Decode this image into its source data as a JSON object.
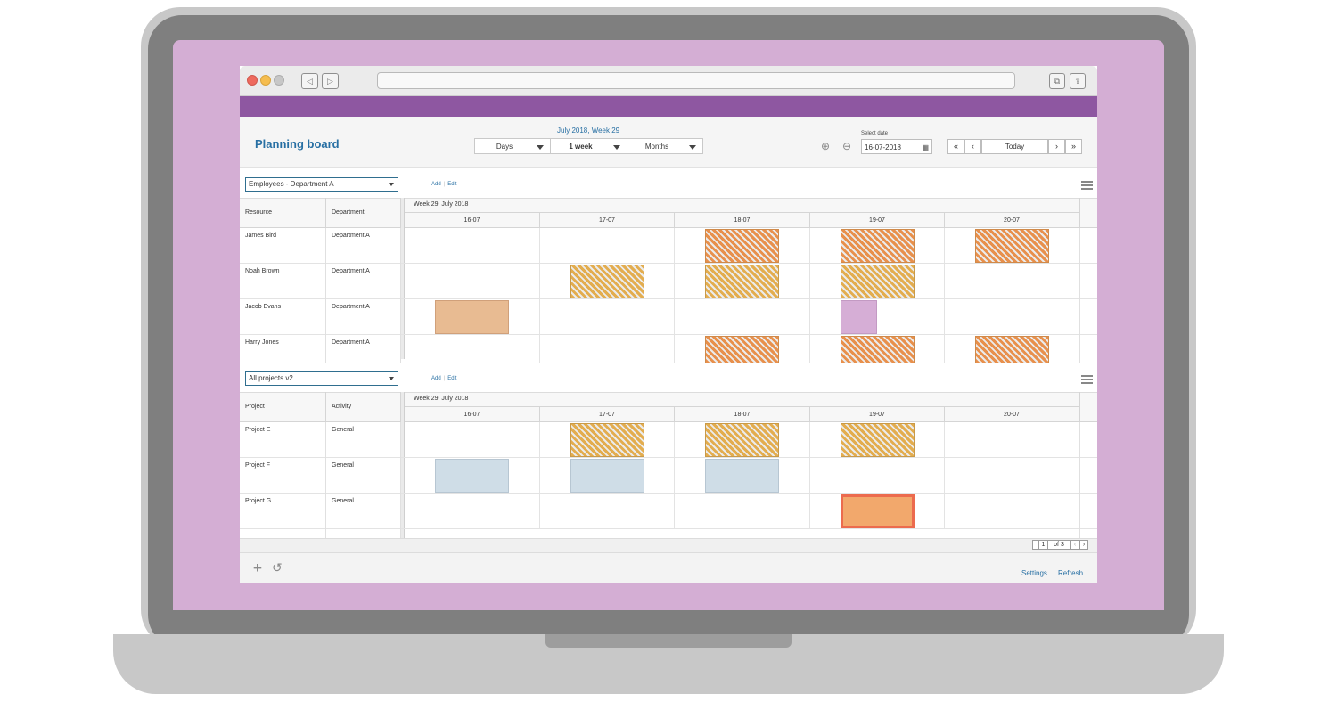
{
  "app": {
    "title": "Planning board",
    "period_label": "July 2018, Week 29",
    "view_selects": [
      {
        "label": "Days",
        "bold": false
      },
      {
        "label": "1 week",
        "bold": true
      },
      {
        "label": "Months",
        "bold": false
      }
    ],
    "select_date_label": "Select date",
    "date_value": "16-07-2018",
    "pager": {
      "first": "«",
      "prev": "‹",
      "today": "Today",
      "next": "›",
      "last": "»"
    }
  },
  "colors": {
    "brand_purple": "#8e57a1",
    "link_blue": "#276fa3",
    "bar_orange": "#e8904c",
    "bar_yellow": "#e3ad4f",
    "bar_peach": "#e8bb92",
    "bar_lilac": "#d6aed6",
    "bar_lightblue": "#cfdde7",
    "bar_salmon": "#f2a86c"
  },
  "sections": [
    {
      "filter_value": "Employees - Department A",
      "add_label": "Add",
      "edit_label": "Edit",
      "columns": [
        "Resource",
        "Department"
      ],
      "week_label": "Week 29, July 2018",
      "days": [
        "16-07",
        "17-07",
        "18-07",
        "19-07",
        "20-07"
      ],
      "rows": [
        {
          "name": "James Bird",
          "group": "Department A",
          "bookings": [
            {
              "day": 2,
              "style": "orange"
            },
            {
              "day": 3,
              "style": "orange"
            },
            {
              "day": 4,
              "style": "orange"
            }
          ]
        },
        {
          "name": "Noah Brown",
          "group": "Department A",
          "bookings": [
            {
              "day": 1,
              "style": "yellow"
            },
            {
              "day": 2,
              "style": "yellow"
            },
            {
              "day": 3,
              "style": "yellow"
            }
          ]
        },
        {
          "name": "Jacob Evans",
          "group": "Department A",
          "bookings": [
            {
              "day": 0,
              "style": "peach"
            },
            {
              "day": 3,
              "style": "lilac",
              "half": true
            }
          ]
        },
        {
          "name": "Harry Jones",
          "group": "Department A",
          "bookings": [
            {
              "day": 2,
              "style": "orange"
            },
            {
              "day": 3,
              "style": "orange"
            },
            {
              "day": 4,
              "style": "orange"
            }
          ]
        }
      ]
    },
    {
      "filter_value": "All projects v2",
      "add_label": "Add",
      "edit_label": "Edit",
      "columns": [
        "Project",
        "Activity"
      ],
      "week_label": "Week 29, July 2018",
      "days": [
        "16-07",
        "17-07",
        "18-07",
        "19-07",
        "20-07"
      ],
      "rows": [
        {
          "name": "Project E",
          "group": "General",
          "bookings": [
            {
              "day": 1,
              "style": "yellow"
            },
            {
              "day": 2,
              "style": "yellow"
            },
            {
              "day": 3,
              "style": "yellow"
            }
          ]
        },
        {
          "name": "Project F",
          "group": "General",
          "bookings": [
            {
              "day": 0,
              "style": "lightblue"
            },
            {
              "day": 1,
              "style": "lightblue"
            },
            {
              "day": 2,
              "style": "lightblue"
            }
          ]
        },
        {
          "name": "Project G",
          "group": "General",
          "bookings": [
            {
              "day": 3,
              "style": "salmon"
            }
          ]
        }
      ]
    }
  ],
  "pagination": {
    "current": "1",
    "of": "of 3"
  },
  "footer": {
    "settings_label": "Settings",
    "refresh_label": "Refresh"
  }
}
